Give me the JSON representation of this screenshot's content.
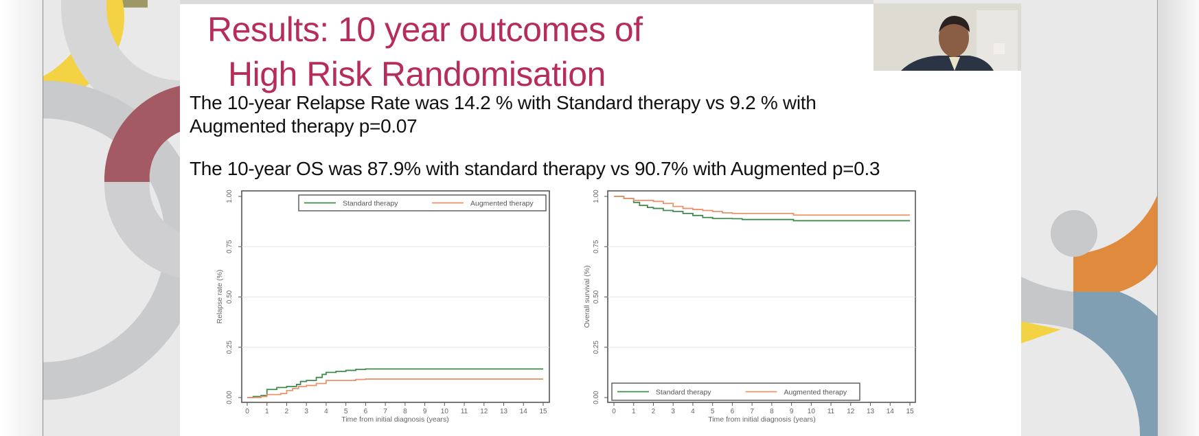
{
  "slide": {
    "title_line1": "Results: 10 year outcomes of",
    "title_line2": "High Risk Randomisation",
    "relapse_text_line1": "The 10-year Relapse Rate was 14.2 % with Standard therapy vs 9.2 % with",
    "relapse_text_line2": "Augmented therapy p=0.07",
    "os_text": "The 10-year OS was 87.9% with standard therapy vs 90.7%  with Augmented p=0.3",
    "title_color": "#b52d58"
  },
  "webcam": {
    "content": "presenter video feed"
  },
  "colors": {
    "standard": "#3f8b4e",
    "augmented": "#e9936a"
  },
  "chart_data": [
    {
      "type": "line",
      "step": true,
      "xlabel": "Time from initial diagnosis (years)",
      "ylabel": "Relapse rate (%)",
      "xlim": [
        0,
        15
      ],
      "ylim": [
        0,
        1
      ],
      "xticks": [
        "0",
        "1",
        "2",
        "3",
        "4",
        "5",
        "6",
        "7",
        "8",
        "9",
        "10",
        "11",
        "12",
        "13",
        "14",
        "15"
      ],
      "yticks": [
        "0.00",
        "0.25",
        "0.50",
        "0.75",
        "1.00"
      ],
      "grid": true,
      "legend": "top-right",
      "series": [
        {
          "name": "Standard therapy",
          "x": [
            0,
            0.3,
            0.7,
            1,
            1.5,
            2,
            2.5,
            2.7,
            3,
            3.5,
            3.8,
            4,
            4.5,
            5,
            5.5,
            6,
            15
          ],
          "y": [
            0,
            0.005,
            0.01,
            0.04,
            0.05,
            0.055,
            0.065,
            0.08,
            0.085,
            0.1,
            0.115,
            0.125,
            0.13,
            0.135,
            0.14,
            0.142,
            0.142
          ]
        },
        {
          "name": "Augmented therapy",
          "x": [
            0,
            0.7,
            1,
            1.7,
            2,
            2.3,
            2.6,
            3,
            3.5,
            4,
            5,
            5.5,
            6,
            15
          ],
          "y": [
            0,
            0.005,
            0.015,
            0.02,
            0.035,
            0.045,
            0.055,
            0.06,
            0.07,
            0.085,
            0.085,
            0.09,
            0.092,
            0.092
          ]
        }
      ]
    },
    {
      "type": "line",
      "step": true,
      "xlabel": "Time from initial diagnosis (years)",
      "ylabel": "Overall survival (%)",
      "xlim": [
        0,
        15
      ],
      "ylim": [
        0,
        1
      ],
      "xticks": [
        "0",
        "1",
        "2",
        "3",
        "4",
        "5",
        "6",
        "7",
        "8",
        "9",
        "10",
        "11",
        "12",
        "13",
        "14",
        "15"
      ],
      "yticks": [
        "0.00",
        "0.25",
        "0.50",
        "0.75",
        "1.00"
      ],
      "grid": true,
      "legend": "bottom-left",
      "series": [
        {
          "name": "Standard therapy",
          "x": [
            0,
            0.5,
            1,
            1.3,
            1.7,
            2,
            2.5,
            3,
            3.5,
            4,
            4.5,
            5,
            6,
            6.5,
            9,
            9.1,
            15
          ],
          "y": [
            1,
            0.99,
            0.97,
            0.955,
            0.945,
            0.94,
            0.93,
            0.925,
            0.915,
            0.905,
            0.895,
            0.89,
            0.889,
            0.885,
            0.885,
            0.879,
            0.879
          ]
        },
        {
          "name": "Augmented therapy",
          "x": [
            0,
            0.5,
            1,
            2,
            2.5,
            3,
            3.5,
            4,
            4.5,
            5,
            5.5,
            6,
            9,
            9.1,
            15
          ],
          "y": [
            1,
            0.99,
            0.98,
            0.975,
            0.965,
            0.95,
            0.94,
            0.935,
            0.93,
            0.925,
            0.918,
            0.915,
            0.915,
            0.907,
            0.907
          ]
        }
      ]
    }
  ]
}
